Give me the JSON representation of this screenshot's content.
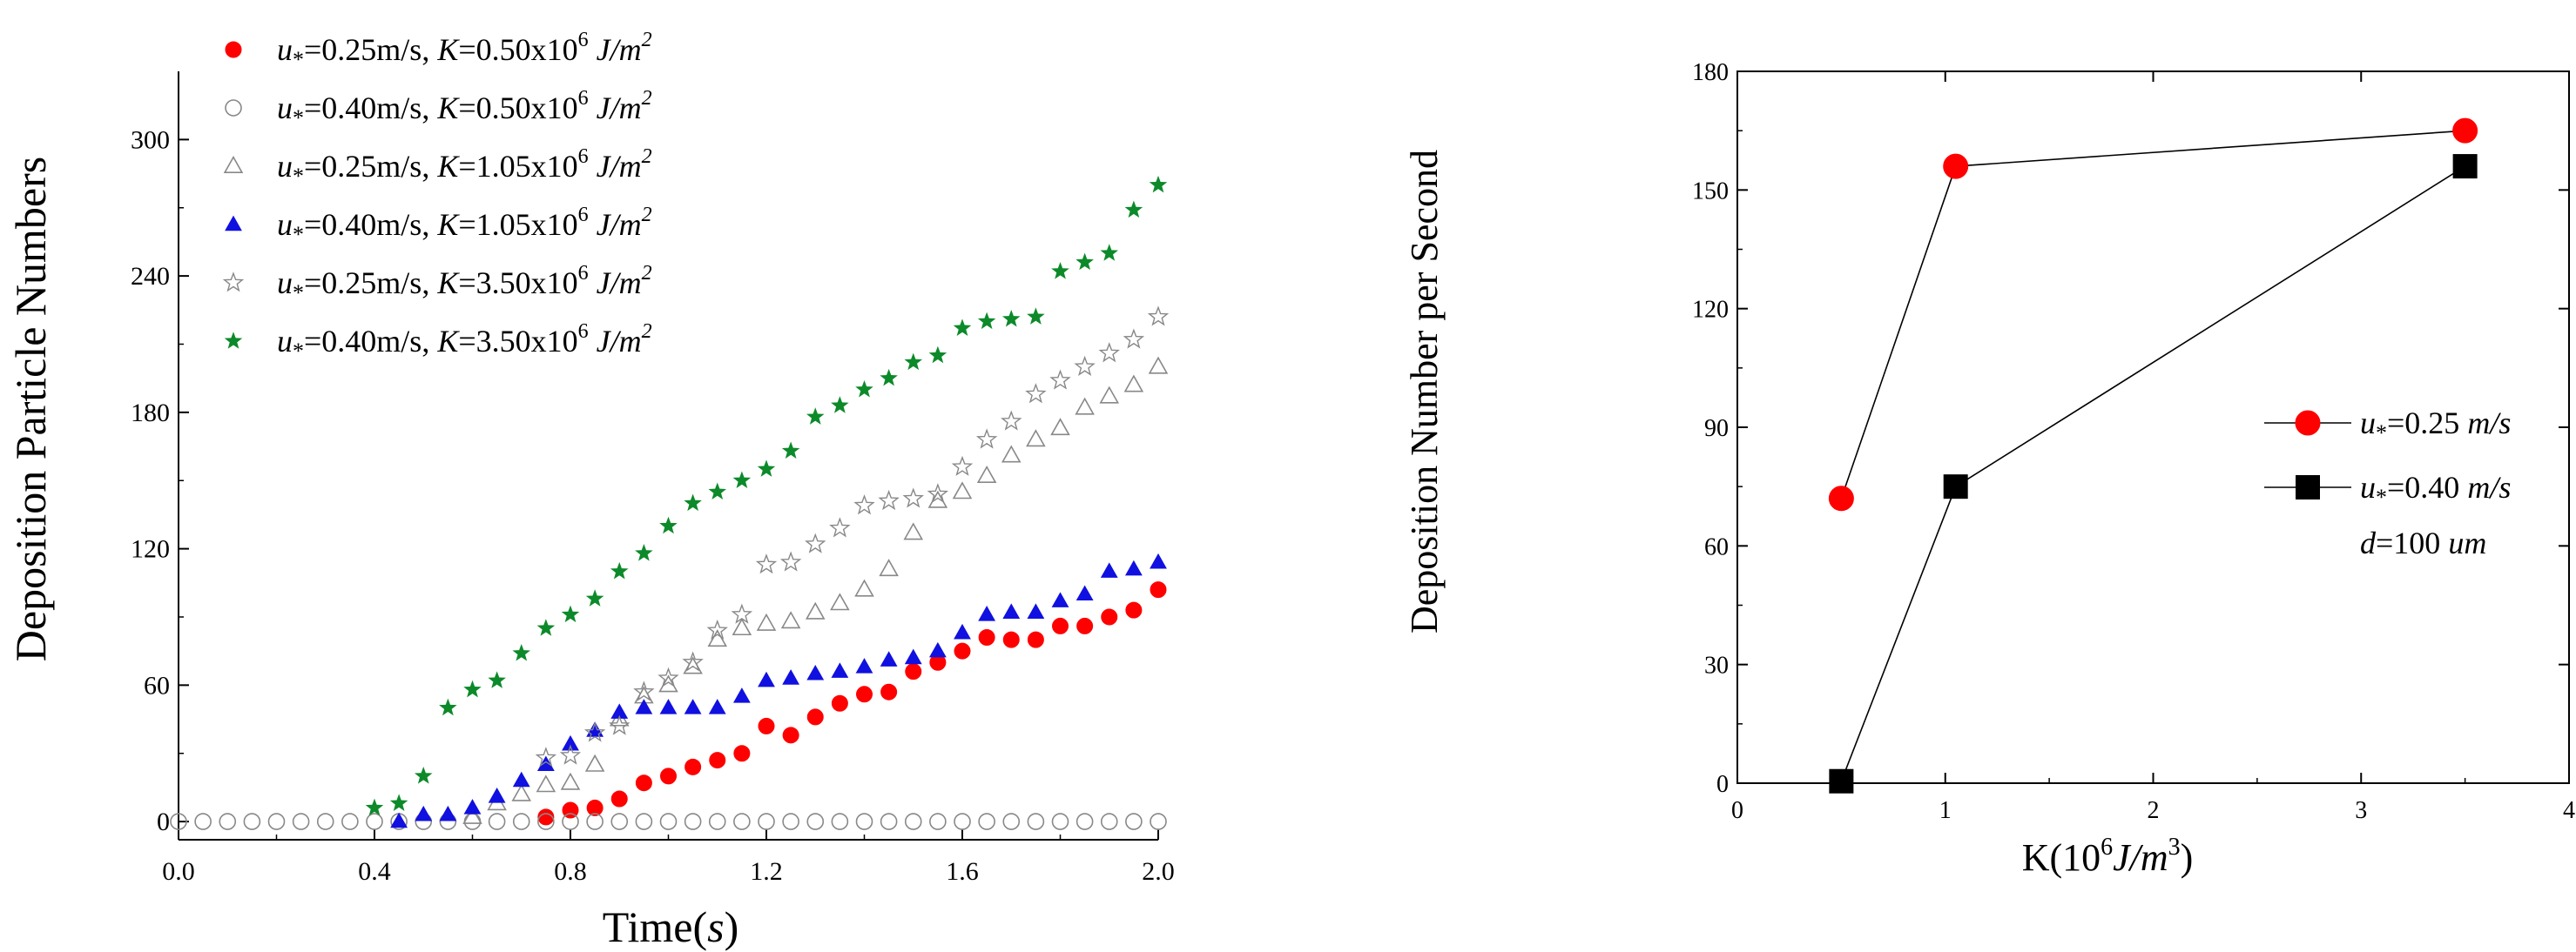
{
  "chart_data": [
    {
      "type": "scatter",
      "xlabel": "Time(s)",
      "ylabel": "Deposition Particle Numbers",
      "xlim": [
        0,
        2.0
      ],
      "ylim": [
        -8,
        330
      ],
      "x_ticks": [
        "0.0",
        "0.4",
        "0.8",
        "1.2",
        "1.6",
        "2.0"
      ],
      "x_tick_values": [
        0,
        0.4,
        0.8,
        1.2,
        1.6,
        2.0
      ],
      "y_ticks": [
        "0",
        "60",
        "120",
        "180",
        "240",
        "300"
      ],
      "y_tick_values": [
        0,
        60,
        120,
        180,
        240,
        300
      ],
      "series": [
        {
          "name": "u*=0.25m/s, K=0.50x10^6 J/m^2",
          "legend": {
            "u": "u",
            "sub": "*",
            "speed": "=0.25m/s, ",
            "k": "K",
            "val": "=0.50x10",
            "exp": "6",
            "unit": "J/m",
            "unit_exp": "2"
          },
          "marker": "circle-filled",
          "color": "#ff0000",
          "x": [
            0.75,
            0.8,
            0.85,
            0.9,
            0.95,
            1.0,
            1.05,
            1.1,
            1.15,
            1.2,
            1.25,
            1.3,
            1.35,
            1.4,
            1.45,
            1.5,
            1.55,
            1.6,
            1.65,
            1.7,
            1.75,
            1.8,
            1.85,
            1.9,
            1.95,
            2.0
          ],
          "y": [
            2,
            5,
            6,
            10,
            17,
            20,
            24,
            27,
            30,
            42,
            38,
            46,
            52,
            56,
            57,
            66,
            70,
            75,
            81,
            80,
            80,
            86,
            86,
            90,
            93,
            102
          ]
        },
        {
          "name": "u*=0.40m/s, K=0.50x10^6 J/m^2",
          "legend": {
            "u": "u",
            "sub": "*",
            "speed": "=0.40m/s, ",
            "k": "K",
            "val": "=0.50x10",
            "exp": "6",
            "unit": "J/m",
            "unit_exp": "2"
          },
          "marker": "circle-open",
          "color": "#888888",
          "x": [
            0.0,
            0.05,
            0.1,
            0.15,
            0.2,
            0.25,
            0.3,
            0.35,
            0.4,
            0.45,
            0.5,
            0.55,
            0.6,
            0.65,
            0.7,
            0.75,
            0.8,
            0.85,
            0.9,
            0.95,
            1.0,
            1.05,
            1.1,
            1.15,
            1.2,
            1.25,
            1.3,
            1.35,
            1.4,
            1.45,
            1.5,
            1.55,
            1.6,
            1.65,
            1.7,
            1.75,
            1.8,
            1.85,
            1.9,
            1.95,
            2.0
          ],
          "y": [
            0,
            0,
            0,
            0,
            0,
            0,
            0,
            0,
            0,
            0,
            0,
            0,
            0,
            0,
            0,
            0,
            0,
            0,
            0,
            0,
            0,
            0,
            0,
            0,
            0,
            0,
            0,
            0,
            0,
            0,
            0,
            0,
            0,
            0,
            0,
            0,
            0,
            0,
            0,
            0,
            0
          ]
        },
        {
          "name": "u*=0.25m/s, K=1.05x10^6 J/m^2",
          "legend": {
            "u": "u",
            "sub": "*",
            "speed": "=0.25m/s, ",
            "k": "K",
            "val": "=1.05x10",
            "exp": "6",
            "unit": "J/m",
            "unit_exp": "2"
          },
          "marker": "triangle-open",
          "color": "#888888",
          "x": [
            0.6,
            0.65,
            0.7,
            0.75,
            0.8,
            0.85,
            0.9,
            0.95,
            1.0,
            1.05,
            1.1,
            1.15,
            1.2,
            1.25,
            1.3,
            1.35,
            1.4,
            1.45,
            1.5,
            1.55,
            1.6,
            1.65,
            1.7,
            1.75,
            1.8,
            1.85,
            1.9,
            1.95,
            2.0
          ],
          "y": [
            2,
            8,
            12,
            16,
            17,
            25,
            45,
            55,
            60,
            68,
            80,
            85,
            87,
            88,
            92,
            96,
            102,
            111,
            127,
            141,
            145,
            152,
            161,
            168,
            173,
            182,
            187,
            192,
            200
          ]
        },
        {
          "name": "u*=0.40m/s, K=1.05x10^6 J/m^2",
          "legend": {
            "u": "u",
            "sub": "*",
            "speed": "=0.40m/s, ",
            "k": "K",
            "val": "=1.05x10",
            "exp": "6",
            "unit": "J/m",
            "unit_exp": "2"
          },
          "marker": "triangle-filled",
          "color": "#1010e0",
          "x": [
            0.45,
            0.5,
            0.55,
            0.6,
            0.65,
            0.7,
            0.75,
            0.8,
            0.85,
            0.9,
            0.95,
            1.0,
            1.05,
            1.1,
            1.15,
            1.2,
            1.25,
            1.3,
            1.35,
            1.4,
            1.45,
            1.5,
            1.55,
            1.6,
            1.65,
            1.7,
            1.75,
            1.8,
            1.85,
            1.9,
            1.95,
            2.0
          ],
          "y": [
            0,
            3,
            3,
            6,
            11,
            18,
            25,
            34,
            40,
            48,
            50,
            50,
            50,
            50,
            55,
            62,
            63,
            65,
            66,
            68,
            71,
            72,
            75,
            83,
            91,
            92,
            92,
            97,
            100,
            110,
            111,
            114
          ]
        },
        {
          "name": "u*=0.25m/s, K=3.50x10^6 J/m^2",
          "legend": {
            "u": "u",
            "sub": "*",
            "speed": "=0.25m/s, ",
            "k": "K",
            "val": "=3.50x10",
            "exp": "6",
            "unit": "J/m",
            "unit_exp": "2"
          },
          "marker": "star-open",
          "color": "#888888",
          "x": [
            0.75,
            0.8,
            0.85,
            0.9,
            0.95,
            1.0,
            1.05,
            1.1,
            1.15,
            1.2,
            1.25,
            1.3,
            1.35,
            1.4,
            1.45,
            1.5,
            1.55,
            1.6,
            1.65,
            1.7,
            1.75,
            1.8,
            1.85,
            1.9,
            1.95,
            2.0
          ],
          "y": [
            28,
            29,
            39,
            42,
            57,
            63,
            70,
            84,
            91,
            113,
            114,
            122,
            129,
            139,
            141,
            142,
            144,
            156,
            168,
            176,
            188,
            194,
            200,
            206,
            212,
            222
          ]
        },
        {
          "name": "u*=0.40m/s, K=3.50x10^6 J/m^2",
          "legend": {
            "u": "u",
            "sub": "*",
            "speed": "=0.40m/s, ",
            "k": "K",
            "val": "=3.50x10",
            "exp": "6",
            "unit": "J/m",
            "unit_exp": "2"
          },
          "marker": "star-filled",
          "color": "#0c8a2a",
          "x": [
            0.4,
            0.45,
            0.5,
            0.55,
            0.6,
            0.65,
            0.7,
            0.75,
            0.8,
            0.85,
            0.9,
            0.95,
            1.0,
            1.05,
            1.1,
            1.15,
            1.2,
            1.25,
            1.3,
            1.35,
            1.4,
            1.45,
            1.5,
            1.55,
            1.6,
            1.65,
            1.7,
            1.75,
            1.8,
            1.85,
            1.9,
            1.95,
            2.0
          ],
          "y": [
            6,
            8,
            20,
            50,
            58,
            62,
            74,
            85,
            91,
            98,
            110,
            118,
            130,
            140,
            145,
            150,
            155,
            163,
            178,
            183,
            190,
            195,
            202,
            205,
            217,
            220,
            221,
            222,
            242,
            246,
            250,
            269,
            280
          ]
        }
      ]
    },
    {
      "type": "line",
      "xlabel": "K(10^6 J/m^3)",
      "xlabel_parts": {
        "a": "K(10",
        "exp": "6",
        "unit": "J/m",
        "unit_exp": "3",
        "close": ")"
      },
      "ylabel": "Deposition Number per Second",
      "xlim": [
        0,
        4
      ],
      "ylim": [
        0,
        180
      ],
      "x_ticks": [
        "0",
        "1",
        "2",
        "3",
        "4"
      ],
      "x_tick_values": [
        0,
        1,
        2,
        3,
        4
      ],
      "y_ticks": [
        "0",
        "30",
        "60",
        "90",
        "120",
        "150",
        "180"
      ],
      "y_tick_values": [
        0,
        30,
        60,
        90,
        120,
        150,
        180
      ],
      "series": [
        {
          "name": "u*=0.25 m/s",
          "legend": {
            "u": "u",
            "sub": "*",
            "eq": "=0.25 ",
            "unit": "m/s"
          },
          "marker": "circle-filled",
          "color": "#ff0000",
          "x": [
            0.5,
            1.05,
            3.5
          ],
          "y": [
            72,
            156,
            165
          ]
        },
        {
          "name": "u*=0.40 m/s",
          "legend": {
            "u": "u",
            "sub": "*",
            "eq": "=0.40 ",
            "unit": "m/s"
          },
          "marker": "square-filled",
          "color": "#000000",
          "x": [
            0.5,
            1.05,
            3.5
          ],
          "y": [
            0.5,
            75,
            156
          ]
        }
      ],
      "annotation": {
        "d": "d",
        "eq": "=100 ",
        "unit": "um"
      }
    }
  ]
}
